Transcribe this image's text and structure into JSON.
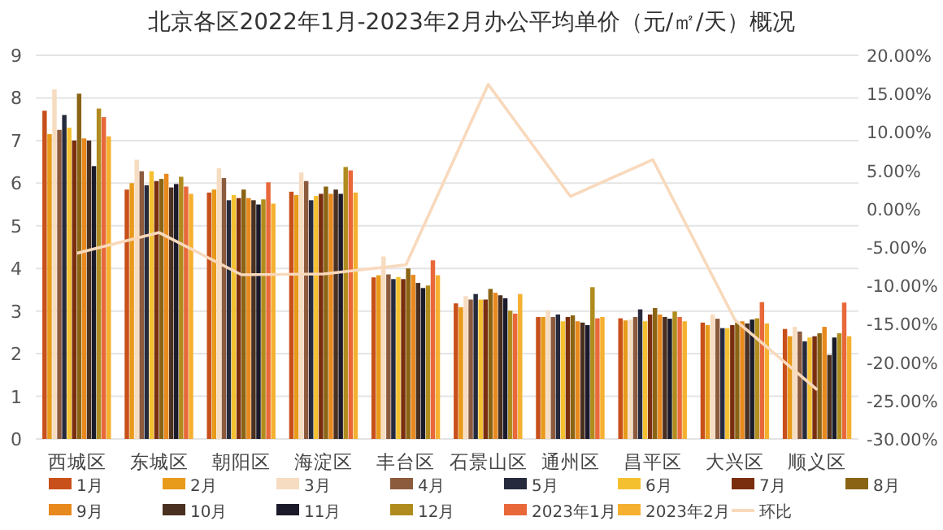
{
  "chart_data": {
    "type": "bar",
    "title": "北京各区2022年1月-2023年2月办公平均单价（元/㎡/天）概况",
    "categories": [
      "西城区",
      "东城区",
      "朝阳区",
      "海淀区",
      "丰台区",
      "石景山区",
      "通州区",
      "昌平区",
      "大兴区",
      "顺义区"
    ],
    "ylim": [
      0,
      9
    ],
    "yticks": [
      0,
      1,
      2,
      3,
      4,
      5,
      6,
      7,
      8,
      9
    ],
    "y2lim": [
      -30,
      20
    ],
    "y2ticks": [
      {
        "value": -30,
        "label": "-30.00%"
      },
      {
        "value": -25,
        "label": "-25.00%"
      },
      {
        "value": -20,
        "label": "-20.00%"
      },
      {
        "value": -15,
        "label": "-15.00%"
      },
      {
        "value": -10,
        "label": "-10.00%"
      },
      {
        "value": -5,
        "label": "-5.00%"
      },
      {
        "value": 0,
        "label": "0.00%"
      },
      {
        "value": 5,
        "label": "5.00%"
      },
      {
        "value": 10,
        "label": "10.00%"
      },
      {
        "value": 15,
        "label": "15.00%"
      },
      {
        "value": 20,
        "label": "20.00%"
      }
    ],
    "grid": "y",
    "legend": "bottom",
    "series": [
      {
        "name": "1月",
        "color": "#c8501a",
        "values": [
          7.7,
          5.85,
          5.78,
          5.8,
          3.79,
          3.18,
          2.86,
          2.83,
          2.73,
          2.58
        ]
      },
      {
        "name": "2月",
        "color": "#e89a1a",
        "values": [
          7.15,
          6.0,
          5.85,
          5.72,
          3.84,
          3.09,
          2.86,
          2.78,
          2.67,
          2.41
        ]
      },
      {
        "name": "3月",
        "color": "#f6dcc0",
        "values": [
          8.2,
          6.55,
          6.35,
          6.25,
          4.28,
          3.35,
          3.02,
          2.8,
          2.92,
          2.63
        ]
      },
      {
        "name": "4月",
        "color": "#8c5a3c",
        "values": [
          7.25,
          6.28,
          6.12,
          6.05,
          3.86,
          3.27,
          2.86,
          2.86,
          2.82,
          2.52
        ]
      },
      {
        "name": "5月",
        "color": "#262a3d",
        "values": [
          7.6,
          5.95,
          5.6,
          5.6,
          3.75,
          3.4,
          2.92,
          3.04,
          2.6,
          2.29
        ]
      },
      {
        "name": "6月",
        "color": "#f5c030",
        "values": [
          7.3,
          6.28,
          5.72,
          5.7,
          3.8,
          3.27,
          2.76,
          2.76,
          2.6,
          2.38
        ]
      },
      {
        "name": "7月",
        "color": "#7a2e0e",
        "values": [
          7.0,
          6.05,
          5.65,
          5.75,
          3.75,
          3.27,
          2.86,
          2.92,
          2.67,
          2.41
        ]
      },
      {
        "name": "8月",
        "color": "#8a6414",
        "values": [
          8.1,
          6.1,
          5.85,
          5.92,
          4.0,
          3.52,
          2.9,
          3.07,
          2.73,
          2.48
        ]
      },
      {
        "name": "9月",
        "color": "#e8891e",
        "values": [
          7.05,
          6.22,
          5.65,
          5.75,
          3.85,
          3.43,
          2.76,
          2.92,
          2.76,
          2.63
        ]
      },
      {
        "name": "10月",
        "color": "#4a3020",
        "values": [
          7.0,
          5.9,
          5.6,
          5.85,
          3.66,
          3.37,
          2.73,
          2.86,
          2.71,
          1.97
        ]
      },
      {
        "name": "11月",
        "color": "#1a1a2a",
        "values": [
          6.4,
          5.98,
          5.5,
          5.75,
          3.54,
          3.3,
          2.67,
          2.82,
          2.8,
          2.38
        ]
      },
      {
        "name": "12月",
        "color": "#b08c1e",
        "values": [
          7.75,
          6.15,
          5.62,
          6.38,
          3.6,
          3.01,
          3.56,
          2.99,
          2.83,
          2.48
        ]
      },
      {
        "name": "2023年1月",
        "color": "#e8683a",
        "values": [
          7.55,
          5.92,
          6.02,
          6.3,
          4.19,
          2.94,
          2.83,
          2.86,
          3.21,
          3.2
        ]
      },
      {
        "name": "2023年2月",
        "color": "#f5b030",
        "values": [
          7.1,
          5.75,
          5.52,
          5.78,
          3.84,
          3.4,
          2.86,
          2.76,
          2.71,
          2.41
        ]
      },
      {
        "name": "环比",
        "type": "line",
        "axis": "y2",
        "color": "#f8d9bc",
        "values": [
          -5.8,
          -3.1,
          -8.6,
          -8.5,
          -7.3,
          16.2,
          1.6,
          6.4,
          -14.5,
          -23.6
        ]
      }
    ]
  }
}
